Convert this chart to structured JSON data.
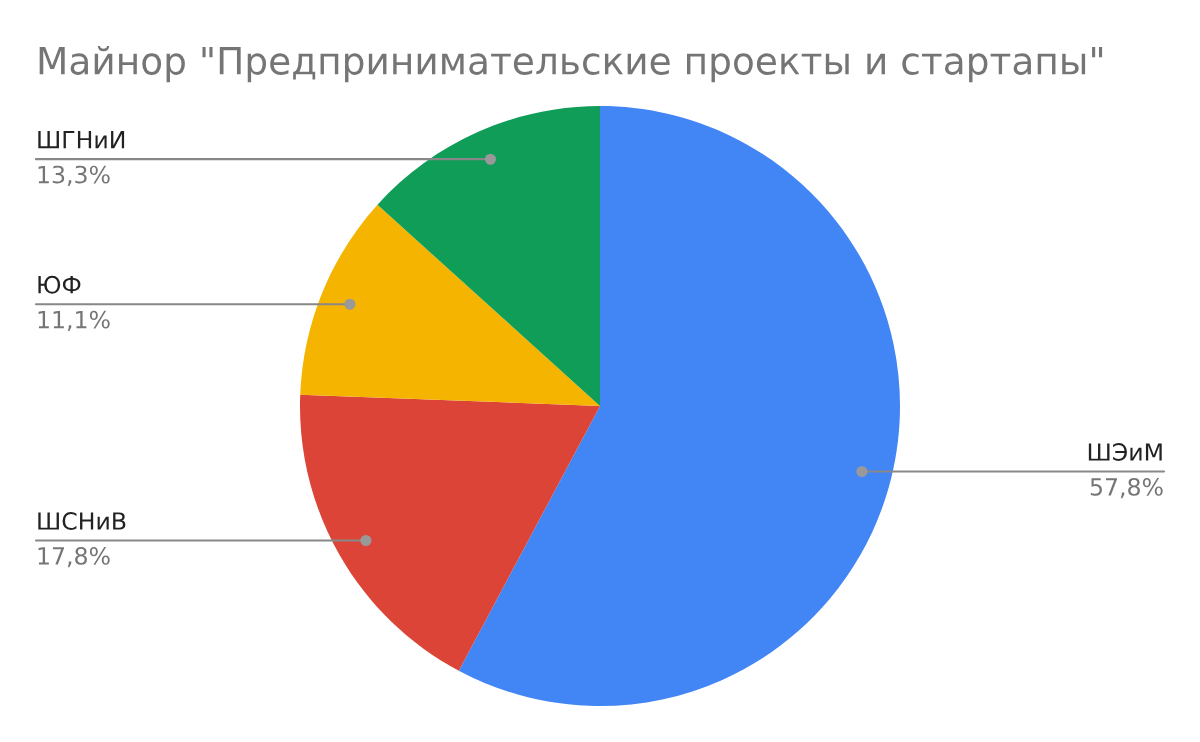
{
  "chart_data": {
    "type": "pie",
    "title": "Майнор \"Предпринимательские проекты и стартапы\"",
    "categories": [
      "ШЭиМ",
      "ШСНиВ",
      "ЮФ",
      "ШГНиИ"
    ],
    "values": [
      57.8,
      17.8,
      11.1,
      13.3
    ],
    "value_labels": [
      "57,8%",
      "17,8%",
      "11,1%",
      "13,3%"
    ],
    "colors": [
      "#4285f4",
      "#db4437",
      "#f4b400",
      "#0f9d58"
    ]
  }
}
